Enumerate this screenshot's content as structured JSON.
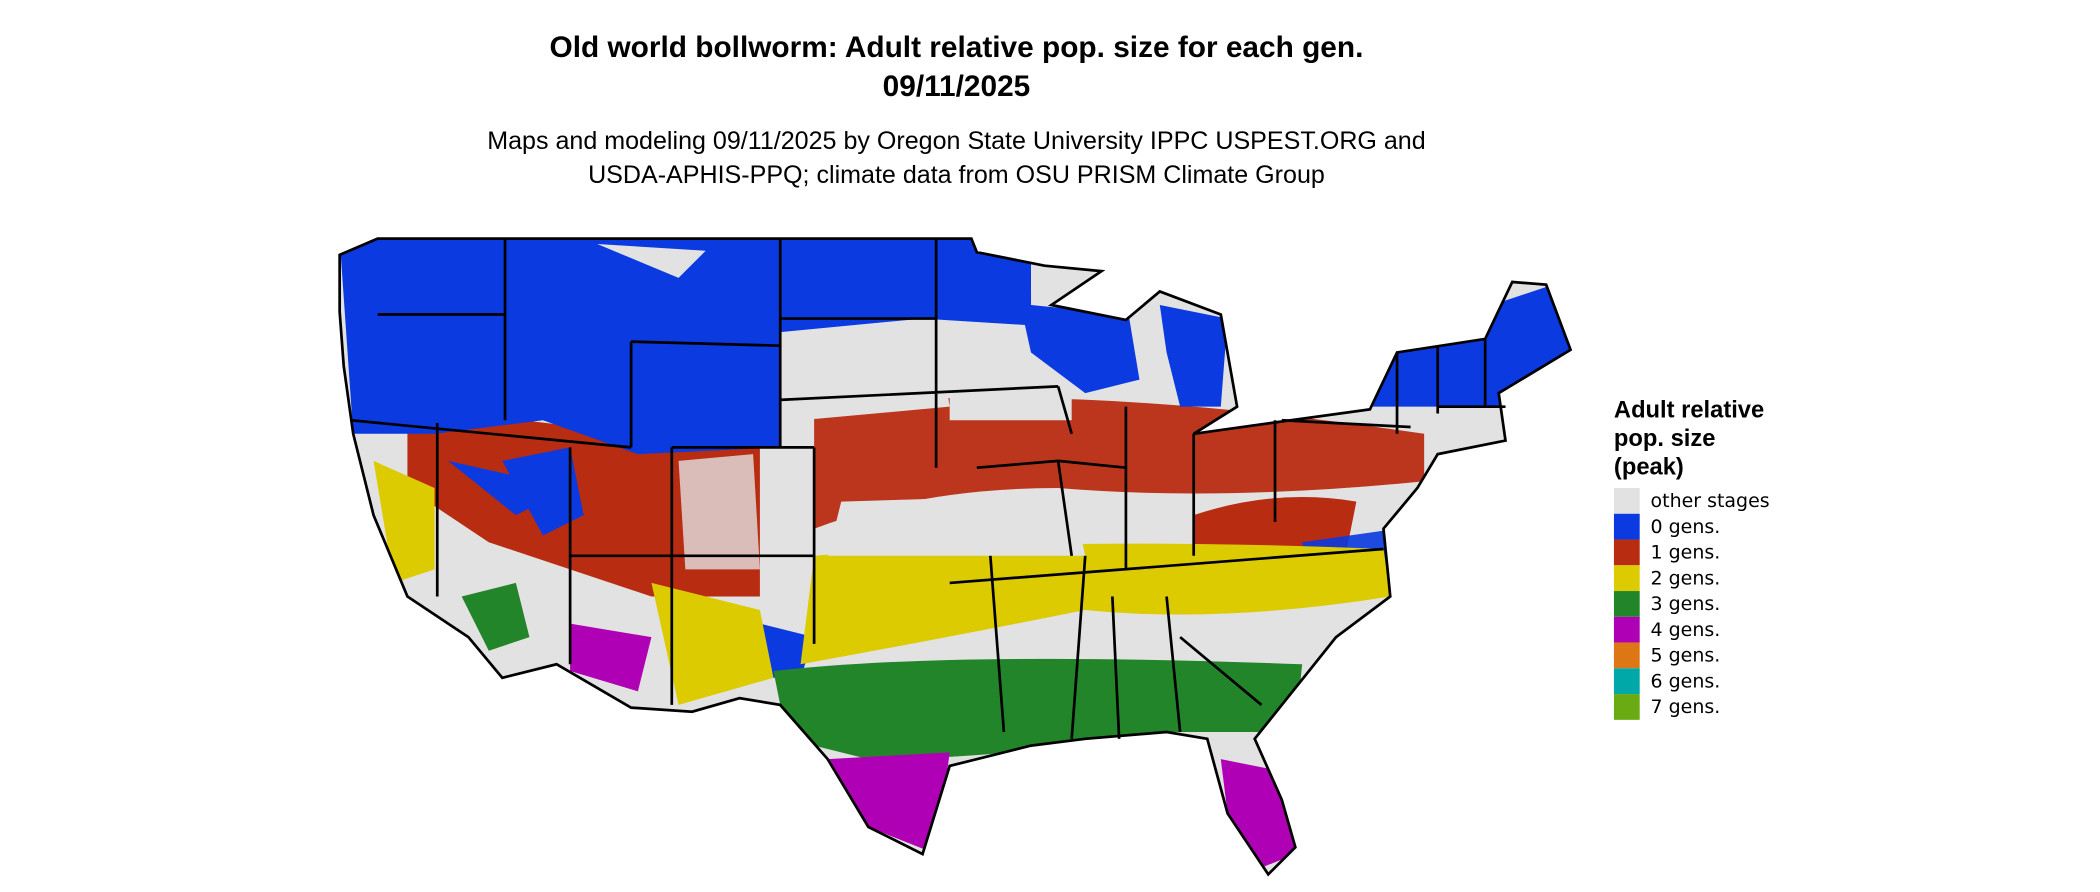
{
  "title": [
    "Old world bollworm: Adult relative pop. size for each gen.",
    "09/11/2025"
  ],
  "subtitle": [
    "Maps and modeling 09/11/2025 by Oregon State University IPPC USPEST.ORG and",
    "USDA-APHIS-PPQ; climate data from OSU PRISM Climate Group"
  ],
  "legend": {
    "title": [
      "Adult relative",
      "pop. size",
      "(peak)"
    ],
    "items": [
      {
        "label": "other stages",
        "color": "#e2e2e2"
      },
      {
        "label": "0 gens.",
        "color": "#0a3ae0"
      },
      {
        "label": "1 gens.",
        "color": "#b82c12"
      },
      {
        "label": "2 gens.",
        "color": "#dccb00"
      },
      {
        "label": "3 gens.",
        "color": "#23852a"
      },
      {
        "label": "4 gens.",
        "color": "#b000b5"
      },
      {
        "label": "5 gens.",
        "color": "#dd7716"
      },
      {
        "label": "6 gens.",
        "color": "#00a8a8"
      },
      {
        "label": "7 gens.",
        "color": "#6aaa12"
      }
    ]
  }
}
